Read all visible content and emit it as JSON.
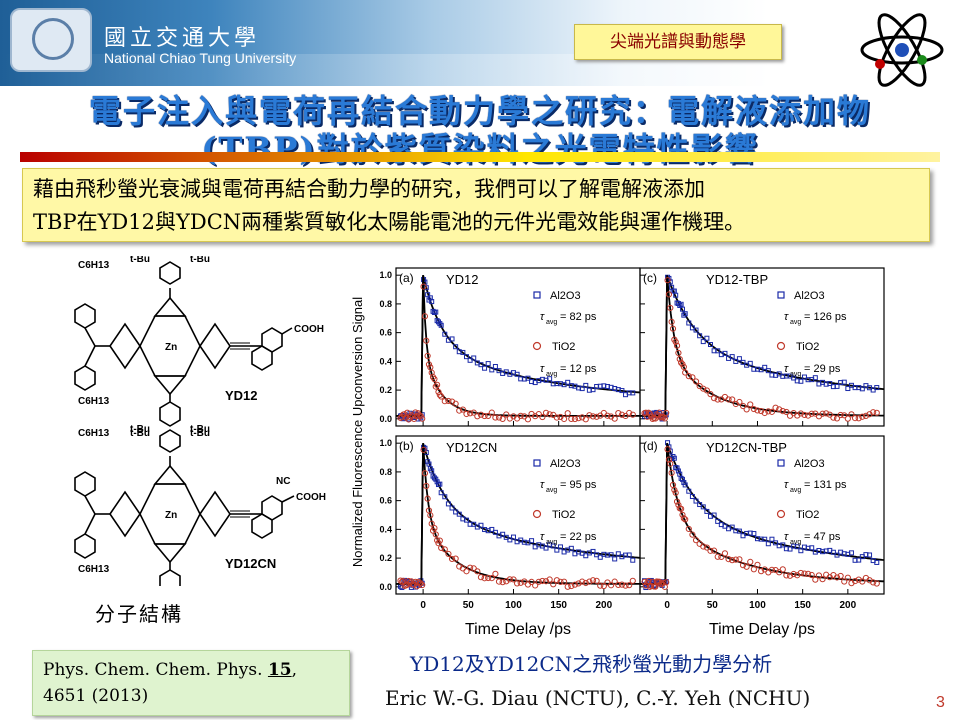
{
  "header": {
    "university_cn": "國立交通大學",
    "university_en": "National Chiao Tung University",
    "topic_tag": "尖端光譜與動態學"
  },
  "title": {
    "line1": "電子注入與電荷再結合動力學之研究：電解液添加物",
    "line2": "(TBP)對於紫質染料之光電特性影響"
  },
  "intro": {
    "line1": "藉由飛秒螢光衰減與電荷再結合動力學的研究，我們可以了解電解液添加",
    "line2": "TBP在YD12與YDCN兩種紫質敏化太陽能電池的元件光電效能與運作機理。"
  },
  "molecules": {
    "names": [
      "YD12",
      "YD12CN"
    ],
    "labels": {
      "tbu": "t-Bu",
      "hexyl": "C6H13",
      "cooh": "COOH",
      "nc": "NC",
      "zn": "Zn",
      "n": "N"
    },
    "section_label": "分子結構"
  },
  "reference": {
    "journal": "Phys. Chem. Chem. Phys.",
    "volume": "15",
    "pages": "4651 (2013)"
  },
  "chart_data": {
    "type": "scatter",
    "ylabel": "Normalized Fluorescence Upconversion Signal",
    "xlabel": "Time Delay /ps",
    "xlim": [
      -30,
      240
    ],
    "ylim": [
      -0.05,
      1.05
    ],
    "xticks": [
      0,
      50,
      100,
      150,
      200
    ],
    "yticks": [
      0.0,
      0.2,
      0.4,
      0.6,
      0.8,
      1.0
    ],
    "tau_symbol": "τ",
    "tau_sub": "avg",
    "legend": {
      "al2o3": "Al2O3",
      "tio2": "TiO2"
    },
    "panels": [
      {
        "tag": "(a)",
        "title": "YD12",
        "al2o3_tau": "= 82 ps",
        "tio2_tau": "= 12 ps",
        "al2o3_tau_ps": 82,
        "tio2_tau_ps": 12,
        "al2o3_plateau": 0.12,
        "tio2_plateau": 0.02
      },
      {
        "tag": "(c)",
        "title": "YD12-TBP",
        "al2o3_tau": "= 126 ps",
        "tio2_tau": "= 29 ps",
        "al2o3_tau_ps": 126,
        "tio2_tau_ps": 29,
        "al2o3_plateau": 0.08,
        "tio2_plateau": 0.02
      },
      {
        "tag": "(b)",
        "title": "YD12CN",
        "al2o3_tau": "= 95 ps",
        "tio2_tau": "= 22 ps",
        "al2o3_tau_ps": 95,
        "tio2_tau_ps": 22,
        "al2o3_plateau": 0.12,
        "tio2_plateau": 0.02
      },
      {
        "tag": "(d)",
        "title": "YD12CN-TBP",
        "al2o3_tau": "= 131 ps",
        "tio2_tau": "= 47 ps",
        "al2o3_tau_ps": 131,
        "tio2_tau_ps": 47,
        "al2o3_plateau": 0.05,
        "tio2_plateau": 0.02
      }
    ],
    "colors": {
      "al2o3": "#1a2aa8",
      "tio2": "#c0392b",
      "fit": "#000000"
    }
  },
  "caption": "YD12及YD12CN之飛秒螢光動力學分析",
  "authors": "Eric W.-G. Diau (NCTU),  C.-Y. Yeh (NCHU)",
  "page_number": "3"
}
